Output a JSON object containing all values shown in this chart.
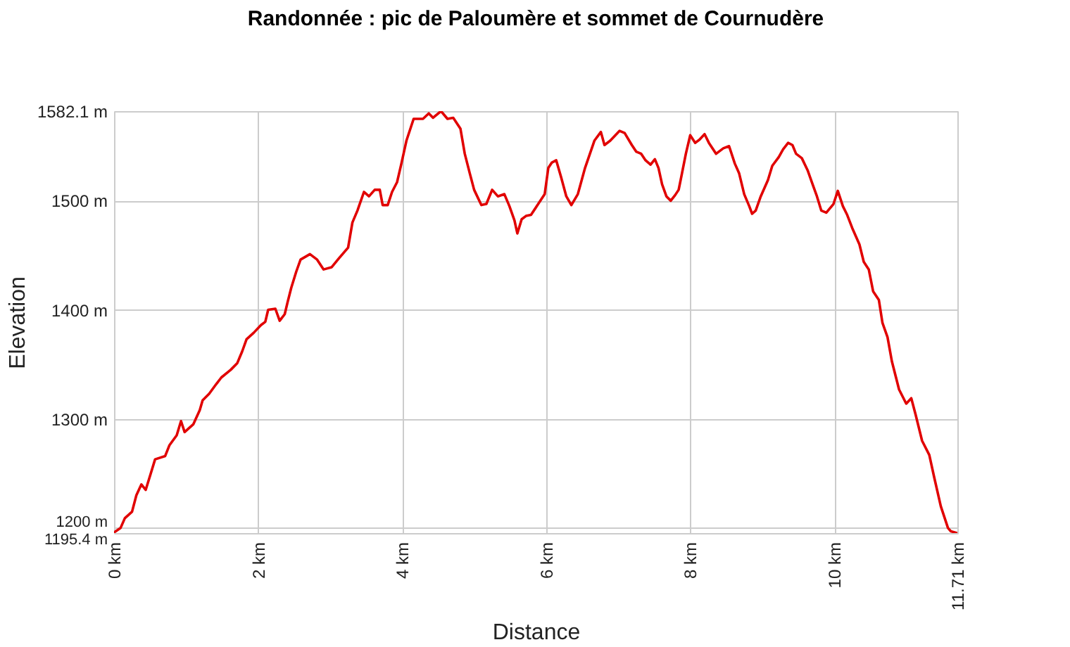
{
  "chart_data": {
    "type": "line",
    "title": "Randonnée : pic de Paloumère et sommet de Cournudère",
    "xlabel": "Distance",
    "ylabel": "Elevation",
    "color": "#e10000",
    "grid": true,
    "xlim": [
      0,
      11.71
    ],
    "ylim": [
      1195.4,
      1582.1
    ],
    "xticks": [
      {
        "value": 0,
        "label": "0 km"
      },
      {
        "value": 2,
        "label": "2 km"
      },
      {
        "value": 4,
        "label": "4 km"
      },
      {
        "value": 6,
        "label": "6 km"
      },
      {
        "value": 8,
        "label": "8 km"
      },
      {
        "value": 10,
        "label": "10 km"
      },
      {
        "value": 11.71,
        "label": "11.71 km"
      }
    ],
    "yticks": [
      {
        "value": 1195.4,
        "label": "1195.4 m"
      },
      {
        "value": 1200,
        "label": "1200 m"
      },
      {
        "value": 1300,
        "label": "1300 m"
      },
      {
        "value": 1400,
        "label": "1400 m"
      },
      {
        "value": 1500,
        "label": "1500 m"
      },
      {
        "value": 1582.1,
        "label": "1582.1 m"
      }
    ],
    "x": [
      0,
      0.09,
      0.15,
      0.25,
      0.31,
      0.38,
      0.44,
      0.51,
      0.57,
      0.71,
      0.77,
      0.87,
      0.93,
      0.98,
      1.1,
      1.19,
      1.23,
      1.32,
      1.42,
      1.49,
      1.62,
      1.71,
      1.78,
      1.84,
      1.94,
      2.04,
      2.1,
      2.14,
      2.24,
      2.3,
      2.37,
      2.41,
      2.46,
      2.53,
      2.59,
      2.72,
      2.82,
      2.91,
      3.02,
      3.12,
      3.25,
      3.31,
      3.38,
      3.47,
      3.54,
      3.62,
      3.69,
      3.73,
      3.8,
      3.86,
      3.93,
      3.99,
      4.06,
      4.16,
      4.29,
      4.37,
      4.43,
      4.54,
      4.63,
      4.71,
      4.81,
      4.87,
      4.94,
      5.0,
      5.1,
      5.17,
      5.25,
      5.33,
      5.42,
      5.49,
      5.56,
      5.6,
      5.66,
      5.72,
      5.79,
      5.88,
      5.98,
      6.03,
      6.08,
      6.14,
      6.21,
      6.28,
      6.35,
      6.44,
      6.54,
      6.67,
      6.76,
      6.81,
      6.89,
      7.02,
      7.09,
      7.19,
      7.25,
      7.32,
      7.38,
      7.45,
      7.51,
      7.56,
      7.61,
      7.67,
      7.73,
      7.79,
      7.84,
      7.88,
      7.94,
      8.0,
      8.07,
      8.13,
      8.2,
      8.26,
      8.36,
      8.46,
      8.54,
      8.62,
      8.68,
      8.75,
      8.82,
      8.86,
      8.91,
      8.98,
      9.08,
      9.14,
      9.23,
      9.29,
      9.36,
      9.42,
      9.47,
      9.55,
      9.63,
      9.7,
      9.76,
      9.82,
      9.89,
      9.99,
      10.05,
      10.12,
      10.18,
      10.25,
      10.35,
      10.41,
      10.48,
      10.54,
      10.62,
      10.67,
      10.74,
      10.8,
      10.9,
      11.0,
      11.07,
      11.13,
      11.22,
      11.32,
      11.39,
      11.48,
      11.58,
      11.62,
      11.71
    ],
    "values": [
      1196,
      1200,
      1209,
      1215,
      1230,
      1240,
      1235,
      1250,
      1263,
      1266,
      1276,
      1285,
      1298,
      1288,
      1295,
      1308,
      1317,
      1323,
      1332,
      1338,
      1345,
      1351,
      1362,
      1373,
      1379,
      1386,
      1389,
      1400,
      1401,
      1390,
      1396,
      1407,
      1420,
      1435,
      1446,
      1451,
      1446,
      1437,
      1439,
      1447,
      1457,
      1480,
      1491,
      1508,
      1504,
      1510,
      1510,
      1496,
      1496,
      1508,
      1517,
      1534,
      1555,
      1575,
      1575,
      1580,
      1576,
      1582.1,
      1575,
      1576,
      1566,
      1543,
      1525,
      1510,
      1496,
      1497,
      1510,
      1504,
      1506,
      1495,
      1482,
      1470,
      1483,
      1486,
      1487,
      1496,
      1506,
      1530,
      1535,
      1537,
      1521,
      1504,
      1496,
      1506,
      1530,
      1555,
      1563,
      1551,
      1555,
      1564,
      1562,
      1551,
      1545,
      1543,
      1537,
      1533,
      1538,
      1530,
      1515,
      1504,
      1500,
      1505,
      1510,
      1523,
      1543,
      1560,
      1553,
      1556,
      1561,
      1553,
      1543,
      1548,
      1550,
      1534,
      1525,
      1506,
      1495,
      1488,
      1491,
      1504,
      1519,
      1532,
      1540,
      1547,
      1553,
      1551,
      1543,
      1539,
      1528,
      1515,
      1504,
      1491,
      1489,
      1497,
      1509,
      1495,
      1487,
      1475,
      1460,
      1444,
      1437,
      1417,
      1409,
      1388,
      1375,
      1353,
      1327,
      1314,
      1319,
      1304,
      1280,
      1267,
      1246,
      1220,
      1200,
      1197,
      1195.4
    ]
  }
}
